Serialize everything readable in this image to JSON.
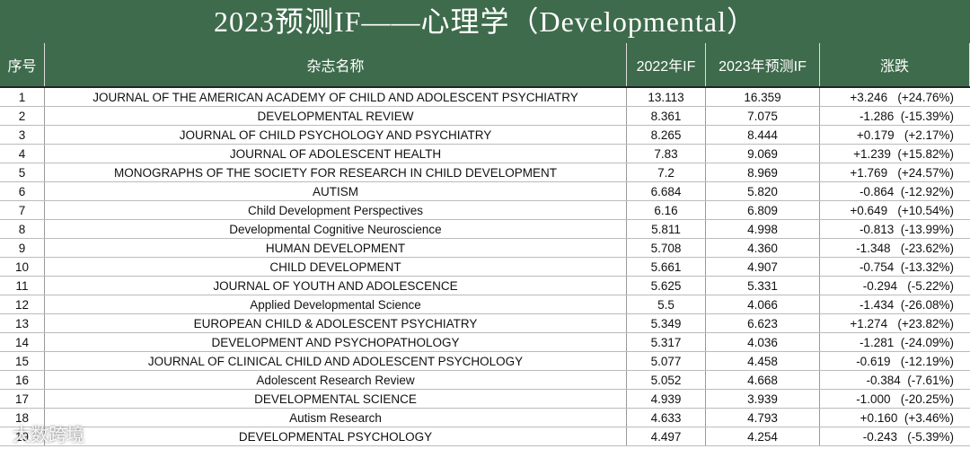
{
  "header": {
    "title": "2023预测IF——心理学（Developmental）"
  },
  "table": {
    "columns": [
      "序号",
      "杂志名称",
      "2022年IF",
      "2023年预测IF",
      "涨跌"
    ],
    "rows": [
      [
        "1",
        "JOURNAL OF THE AMERICAN ACADEMY OF CHILD AND ADOLESCENT PSYCHIATRY",
        "13.113",
        "16.359",
        "+3.246   (+24.76%)"
      ],
      [
        "2",
        "DEVELOPMENTAL REVIEW",
        "8.361",
        "7.075",
        "-1.286  (-15.39%)"
      ],
      [
        "3",
        "JOURNAL OF CHILD PSYCHOLOGY AND PSYCHIATRY",
        "8.265",
        "8.444",
        "+0.179   (+2.17%)"
      ],
      [
        "4",
        "JOURNAL OF ADOLESCENT HEALTH",
        "7.83",
        "9.069",
        "+1.239  (+15.82%)"
      ],
      [
        "5",
        "MONOGRAPHS OF THE SOCIETY FOR RESEARCH IN CHILD DEVELOPMENT",
        "7.2",
        "8.969",
        "+1.769   (+24.57%)"
      ],
      [
        "6",
        "AUTISM",
        "6.684",
        "5.820",
        "-0.864  (-12.92%)"
      ],
      [
        "7",
        "Child Development Perspectives",
        "6.16",
        "6.809",
        "+0.649   (+10.54%)"
      ],
      [
        "8",
        "Developmental Cognitive Neuroscience",
        "5.811",
        "4.998",
        "-0.813  (-13.99%)"
      ],
      [
        "9",
        "HUMAN DEVELOPMENT",
        "5.708",
        "4.360",
        "-1.348   (-23.62%)"
      ],
      [
        "10",
        "CHILD DEVELOPMENT",
        "5.661",
        "4.907",
        "-0.754  (-13.32%)"
      ],
      [
        "11",
        "JOURNAL OF YOUTH AND ADOLESCENCE",
        "5.625",
        "5.331",
        "-0.294   (-5.22%)"
      ],
      [
        "12",
        "Applied Developmental Science",
        "5.5",
        "4.066",
        "-1.434  (-26.08%)"
      ],
      [
        "13",
        "EUROPEAN CHILD & ADOLESCENT PSYCHIATRY",
        "5.349",
        "6.623",
        "+1.274   (+23.82%)"
      ],
      [
        "14",
        "DEVELOPMENT AND PSYCHOPATHOLOGY",
        "5.317",
        "4.036",
        "-1.281  (-24.09%)"
      ],
      [
        "15",
        "JOURNAL OF CLINICAL CHILD AND ADOLESCENT PSYCHOLOGY",
        "5.077",
        "4.458",
        "-0.619   (-12.19%)"
      ],
      [
        "16",
        "Adolescent Research Review",
        "5.052",
        "4.668",
        "-0.384  (-7.61%)"
      ],
      [
        "17",
        "DEVELOPMENTAL SCIENCE",
        "4.939",
        "3.939",
        "-1.000   (-20.25%)"
      ],
      [
        "18",
        "Autism Research",
        "4.633",
        "4.793",
        "+0.160  (+3.46%)"
      ],
      [
        "19",
        "DEVELOPMENTAL PSYCHOLOGY",
        "4.497",
        "4.254",
        "-0.243   (-5.39%)"
      ]
    ]
  },
  "watermark": "大数跨境"
}
